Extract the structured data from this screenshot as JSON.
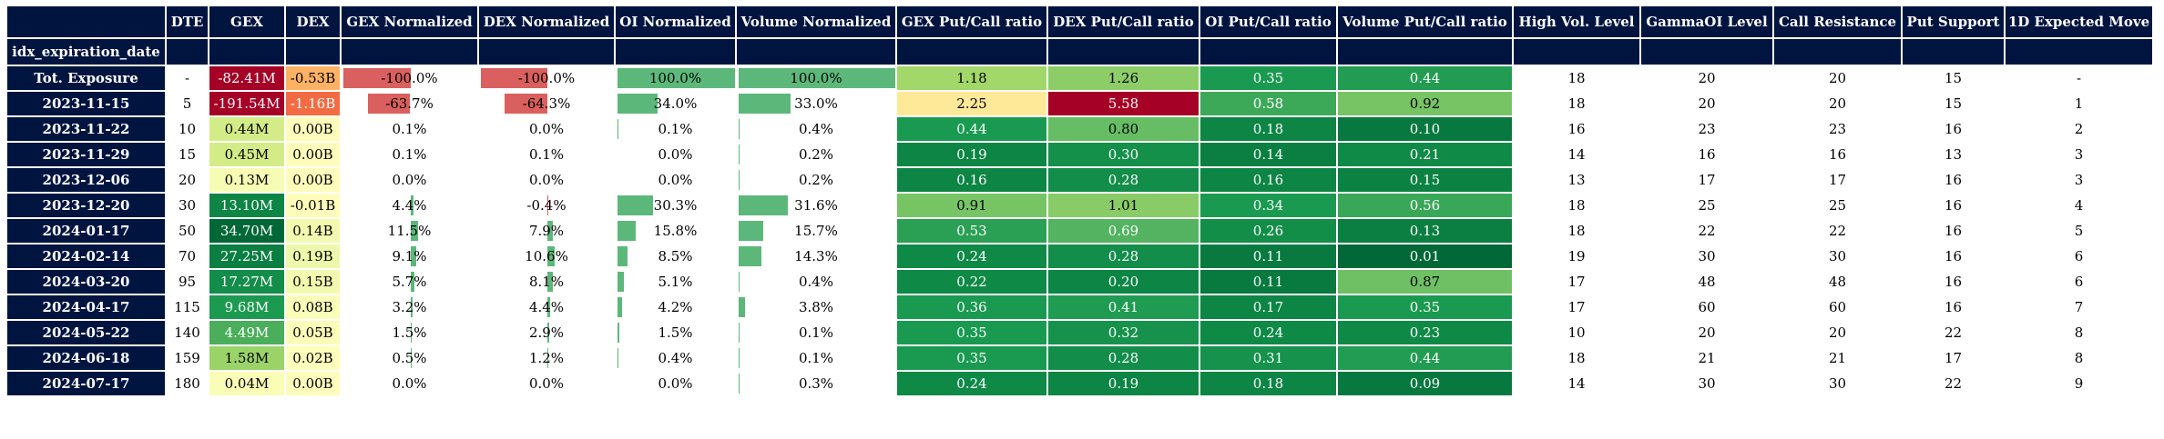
{
  "index_name": "idx_expiration_date",
  "columns": [
    "DTE",
    "GEX",
    "DEX",
    "GEX Normalized",
    "DEX Normalized",
    "OI Normalized",
    "Volume Normalized",
    "GEX Put/Call ratio",
    "DEX Put/Call ratio",
    "OI Put/Call ratio",
    "Volume Put/Call ratio",
    "High Vol. Level",
    "GammaOI Level",
    "Call Resistance",
    "Put Support",
    "1D Expected Move"
  ],
  "colors": {
    "header": "#001440",
    "gex_neg_bar": "#d9605e",
    "pos_bar": "#5cb87a"
  },
  "rows": [
    {
      "idx": "Tot. Exposure",
      "dte": "-",
      "gex": "-82.41M",
      "dex": "-0.53B",
      "gex_n": "-100.0%",
      "dex_n": "-100.0%",
      "oi_n": "100.0%",
      "vol_n": "100.0%",
      "gex_pc": "1.18",
      "dex_pc": "1.26",
      "oi_pc": "0.35",
      "vol_pc": "0.44",
      "hvl": "18",
      "goi": "20",
      "cr": "20",
      "ps": "15",
      "em": "-",
      "gex_color": "#a50026",
      "dex_color": "#fdb163",
      "gex_pc_color": "#a2d76a",
      "dex_pc_color": "#8ccd67",
      "oi_pc_color": "#199a50",
      "vol_pc_color": "#229c52",
      "gex_n_val": -100.0,
      "dex_n_val": -100.0,
      "oi_n_val": 100.0,
      "vol_n_val": 100.0
    },
    {
      "idx": "2023-11-15",
      "dte": "5",
      "gex": "-191.54M",
      "dex": "-1.16B",
      "gex_n": "-63.7%",
      "dex_n": "-64.3%",
      "oi_n": "34.0%",
      "vol_n": "33.0%",
      "gex_pc": "2.25",
      "dex_pc": "5.58",
      "oi_pc": "0.58",
      "vol_pc": "0.92",
      "hvl": "18",
      "goi": "20",
      "cr": "20",
      "ps": "15",
      "em": "1",
      "gex_color": "#a50026",
      "dex_color": "#f36b43",
      "gex_pc_color": "#fee999",
      "dex_pc_color": "#a50026",
      "oi_pc_color": "#3ca959",
      "vol_pc_color": "#77c465",
      "gex_n_val": -63.7,
      "dex_n_val": -64.3,
      "oi_n_val": 34.0,
      "vol_n_val": 33.0
    },
    {
      "idx": "2023-11-22",
      "dte": "10",
      "gex": "0.44M",
      "dex": "0.00B",
      "gex_n": "0.1%",
      "dex_n": "0.0%",
      "oi_n": "0.1%",
      "vol_n": "0.4%",
      "gex_pc": "0.44",
      "dex_pc": "0.80",
      "oi_pc": "0.18",
      "vol_pc": "0.10",
      "hvl": "16",
      "goi": "23",
      "cr": "23",
      "ps": "16",
      "em": "2",
      "gex_color": "#d3ec87",
      "dex_color": "#fefcba",
      "gex_pc_color": "#199a50",
      "dex_pc_color": "#66bd63",
      "oi_pc_color": "#0d8544",
      "vol_pc_color": "#07783f",
      "gex_n_val": 0.1,
      "dex_n_val": 0.0,
      "oi_n_val": 0.1,
      "vol_n_val": 0.4
    },
    {
      "idx": "2023-11-29",
      "dte": "15",
      "gex": "0.45M",
      "dex": "0.00B",
      "gex_n": "0.1%",
      "dex_n": "0.1%",
      "oi_n": "0.0%",
      "vol_n": "0.2%",
      "gex_pc": "0.19",
      "dex_pc": "0.30",
      "oi_pc": "0.14",
      "vol_pc": "0.21",
      "hvl": "14",
      "goi": "16",
      "cr": "16",
      "ps": "13",
      "em": "3",
      "gex_color": "#d3ec87",
      "dex_color": "#fefcba",
      "gex_pc_color": "#0d8544",
      "dex_pc_color": "#15904b",
      "oi_pc_color": "#0a7f41",
      "vol_pc_color": "#108a47",
      "gex_n_val": 0.1,
      "dex_n_val": 0.1,
      "oi_n_val": 0.0,
      "vol_n_val": 0.2
    },
    {
      "idx": "2023-12-06",
      "dte": "20",
      "gex": "0.13M",
      "dex": "0.00B",
      "gex_n": "0.0%",
      "dex_n": "0.0%",
      "oi_n": "0.0%",
      "vol_n": "0.2%",
      "gex_pc": "0.16",
      "dex_pc": "0.28",
      "oi_pc": "0.16",
      "vol_pc": "0.15",
      "hvl": "13",
      "goi": "17",
      "cr": "17",
      "ps": "16",
      "em": "3",
      "gex_color": "#f7fcb4",
      "dex_color": "#fefcba",
      "gex_pc_color": "#0d8544",
      "dex_pc_color": "#138d4a",
      "oi_pc_color": "#0d8544",
      "vol_pc_color": "#0b8242",
      "gex_n_val": 0.0,
      "dex_n_val": 0.0,
      "oi_n_val": 0.0,
      "vol_n_val": 0.2
    },
    {
      "idx": "2023-12-20",
      "dte": "30",
      "gex": "13.10M",
      "dex": "-0.01B",
      "gex_n": "4.4%",
      "dex_n": "-0.4%",
      "oi_n": "30.3%",
      "vol_n": "31.6%",
      "gex_pc": "0.91",
      "dex_pc": "1.01",
      "oi_pc": "0.34",
      "vol_pc": "0.56",
      "hvl": "18",
      "goi": "25",
      "cr": "25",
      "ps": "16",
      "em": "4",
      "gex_color": "#0d8544",
      "dex_color": "#fefcba",
      "gex_pc_color": "#77c465",
      "dex_pc_color": "#89cb66",
      "oi_pc_color": "#199a50",
      "vol_pc_color": "#39a758",
      "gex_n_val": 4.4,
      "dex_n_val": -0.4,
      "oi_n_val": 30.3,
      "vol_n_val": 31.6
    },
    {
      "idx": "2024-01-17",
      "dte": "50",
      "gex": "34.70M",
      "dex": "0.14B",
      "gex_n": "11.5%",
      "dex_n": "7.9%",
      "oi_n": "15.8%",
      "vol_n": "15.7%",
      "gex_pc": "0.53",
      "dex_pc": "0.69",
      "oi_pc": "0.26",
      "vol_pc": "0.13",
      "hvl": "18",
      "goi": "22",
      "cr": "22",
      "ps": "16",
      "em": "5",
      "gex_color": "#006837",
      "dex_color": "#f3fab0",
      "gex_pc_color": "#2aa055",
      "dex_pc_color": "#53b360",
      "oi_pc_color": "#128e49",
      "vol_pc_color": "#0a7f41",
      "gex_n_val": 11.5,
      "dex_n_val": 7.9,
      "oi_n_val": 15.8,
      "vol_n_val": 15.7
    },
    {
      "idx": "2024-02-14",
      "dte": "70",
      "gex": "27.25M",
      "dex": "0.19B",
      "gex_n": "9.1%",
      "dex_n": "10.6%",
      "oi_n": "8.5%",
      "vol_n": "14.3%",
      "gex_pc": "0.24",
      "dex_pc": "0.28",
      "oi_pc": "0.11",
      "vol_pc": "0.01",
      "hvl": "19",
      "goi": "30",
      "cr": "30",
      "ps": "16",
      "em": "6",
      "gex_color": "#0a7f41",
      "dex_color": "#eef8ab",
      "gex_pc_color": "#0f8946",
      "dex_pc_color": "#138d4a",
      "oi_pc_color": "#08793f",
      "vol_pc_color": "#006837",
      "gex_n_val": 9.1,
      "dex_n_val": 10.6,
      "oi_n_val": 8.5,
      "vol_n_val": 14.3
    },
    {
      "idx": "2024-03-20",
      "dte": "95",
      "gex": "17.27M",
      "dex": "0.15B",
      "gex_n": "5.7%",
      "dex_n": "8.1%",
      "oi_n": "5.1%",
      "vol_n": "0.4%",
      "gex_pc": "0.22",
      "dex_pc": "0.20",
      "oi_pc": "0.11",
      "vol_pc": "0.87",
      "hvl": "17",
      "goi": "48",
      "cr": "48",
      "ps": "16",
      "em": "6",
      "gex_color": "#138d4a",
      "dex_color": "#f3fab0",
      "gex_pc_color": "#0f8946",
      "dex_pc_color": "#0d8544",
      "oi_pc_color": "#08793f",
      "vol_pc_color": "#6fc064",
      "gex_n_val": 5.7,
      "dex_n_val": 8.1,
      "oi_n_val": 5.1,
      "vol_n_val": 0.4
    },
    {
      "idx": "2024-04-17",
      "dte": "115",
      "gex": "9.68M",
      "dex": "0.08B",
      "gex_n": "3.2%",
      "dex_n": "4.4%",
      "oi_n": "4.2%",
      "vol_n": "3.8%",
      "gex_pc": "0.36",
      "dex_pc": "0.41",
      "oi_pc": "0.17",
      "vol_pc": "0.35",
      "hvl": "17",
      "goi": "60",
      "cr": "60",
      "ps": "16",
      "em": "7",
      "gex_color": "#1b9a50",
      "dex_color": "#f9fdb8",
      "gex_pc_color": "#199a50",
      "dex_pc_color": "#1f9c52",
      "oi_pc_color": "#0d8544",
      "vol_pc_color": "#199a50",
      "gex_n_val": 3.2,
      "dex_n_val": 4.4,
      "oi_n_val": 4.2,
      "vol_n_val": 3.8
    },
    {
      "idx": "2024-05-22",
      "dte": "140",
      "gex": "4.49M",
      "dex": "0.05B",
      "gex_n": "1.5%",
      "dex_n": "2.9%",
      "oi_n": "1.5%",
      "vol_n": "0.1%",
      "gex_pc": "0.35",
      "dex_pc": "0.32",
      "oi_pc": "0.24",
      "vol_pc": "0.23",
      "hvl": "10",
      "goi": "20",
      "cr": "20",
      "ps": "22",
      "em": "8",
      "gex_color": "#4aae5b",
      "dex_color": "#fbfdb9",
      "gex_pc_color": "#199a50",
      "dex_pc_color": "#16924c",
      "oi_pc_color": "#0f8946",
      "vol_pc_color": "#0f8946",
      "gex_n_val": 1.5,
      "dex_n_val": 2.9,
      "oi_n_val": 1.5,
      "vol_n_val": 0.1
    },
    {
      "idx": "2024-06-18",
      "dte": "159",
      "gex": "1.58M",
      "dex": "0.02B",
      "gex_n": "0.5%",
      "dex_n": "1.2%",
      "oi_n": "0.4%",
      "vol_n": "0.1%",
      "gex_pc": "0.35",
      "dex_pc": "0.28",
      "oi_pc": "0.31",
      "vol_pc": "0.44",
      "hvl": "18",
      "goi": "21",
      "cr": "21",
      "ps": "17",
      "em": "8",
      "gex_color": "#9ad469",
      "dex_color": "#fdfebb",
      "gex_pc_color": "#199a50",
      "dex_pc_color": "#138d4a",
      "oi_pc_color": "#16924c",
      "vol_pc_color": "#229c52",
      "gex_n_val": 0.5,
      "dex_n_val": 1.2,
      "oi_n_val": 0.4,
      "vol_n_val": 0.1
    },
    {
      "idx": "2024-07-17",
      "dte": "180",
      "gex": "0.04M",
      "dex": "0.00B",
      "gex_n": "0.0%",
      "dex_n": "0.0%",
      "oi_n": "0.0%",
      "vol_n": "0.3%",
      "gex_pc": "0.24",
      "dex_pc": "0.19",
      "oi_pc": "0.18",
      "vol_pc": "0.09",
      "hvl": "14",
      "goi": "30",
      "cr": "30",
      "ps": "22",
      "em": "9",
      "gex_color": "#fafdb6",
      "dex_color": "#fefcba",
      "gex_pc_color": "#0f8946",
      "dex_pc_color": "#0d8544",
      "oi_pc_color": "#0d8544",
      "vol_pc_color": "#07783f",
      "gex_n_val": 0.0,
      "dex_n_val": 0.0,
      "oi_n_val": 0.0,
      "vol_n_val": 0.3
    }
  ]
}
